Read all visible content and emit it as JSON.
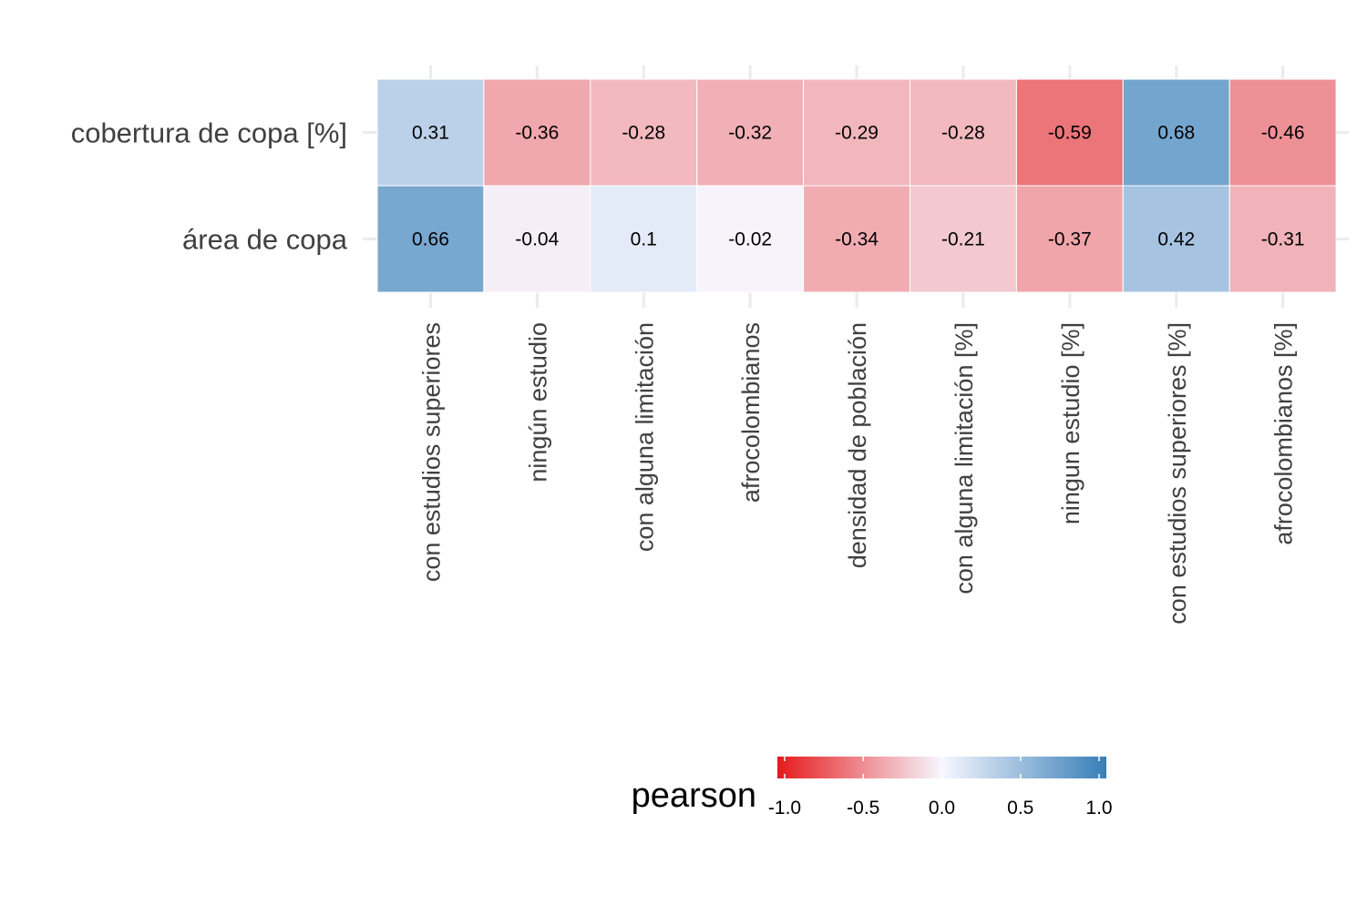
{
  "chart_data": {
    "type": "heatmap",
    "title": "",
    "xlabel": "",
    "ylabel": "",
    "rows": [
      "cobertura de copa [%]",
      "área de copa"
    ],
    "columns": [
      "con estudios superiores",
      "ningún estudio",
      "con alguna limitación",
      "afrocolombianos",
      "densidad de población",
      "con alguna limitación [%]",
      "ningun estudio [%]",
      "con estudios superiores [%]",
      "afrocolombianos [%]"
    ],
    "values": [
      [
        0.31,
        -0.36,
        -0.28,
        -0.32,
        -0.29,
        -0.28,
        -0.59,
        0.68,
        -0.46
      ],
      [
        0.66,
        -0.04,
        0.1,
        -0.02,
        -0.34,
        -0.21,
        -0.37,
        0.42,
        -0.31
      ]
    ],
    "value_labels": [
      [
        "0.31",
        "-0.36",
        "-0.28",
        "-0.32",
        "-0.29",
        "-0.28",
        "-0.59",
        "0.68",
        "-0.46"
      ],
      [
        "0.66",
        "-0.04",
        "0.1",
        "-0.02",
        "-0.34",
        "-0.21",
        "-0.37",
        "0.42",
        "-0.31"
      ]
    ],
    "legend": {
      "title": "pearson",
      "range": [
        -1.0,
        1.0
      ],
      "ticks": [
        -1.0,
        -0.5,
        0.0,
        0.5,
        1.0
      ],
      "tick_labels": [
        "-1.0",
        "-0.5",
        "0.0",
        "0.5",
        "1.0"
      ],
      "position": "bottom"
    },
    "colors": {
      "low": "#e41a1c",
      "mid": "#f7f7ff",
      "high": "#377eb8",
      "grid": "#ebebeb",
      "cell_border": "#ffffff"
    }
  }
}
